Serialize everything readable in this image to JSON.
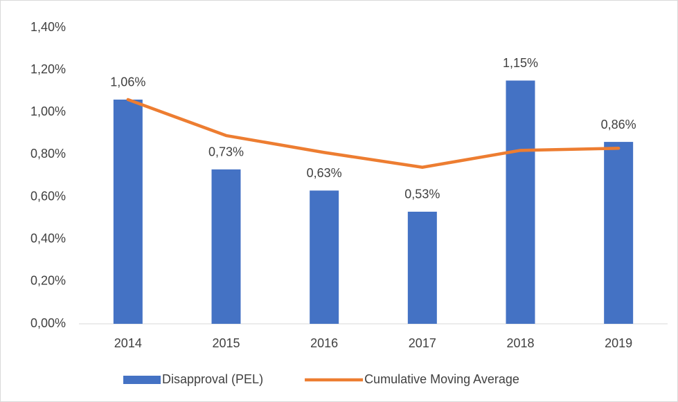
{
  "chart_data": {
    "type": "bar_line",
    "categories": [
      "2014",
      "2015",
      "2016",
      "2017",
      "2018",
      "2019"
    ],
    "series": [
      {
        "name": "Disapproval (PEL)",
        "type": "bar",
        "color": "#4472c4",
        "values": [
          1.06,
          0.73,
          0.63,
          0.53,
          1.15,
          0.86
        ],
        "value_labels": [
          "1,06%",
          "0,73%",
          "0,63%",
          "0,53%",
          "1,15%",
          "0,86%"
        ]
      },
      {
        "name": "Cumulative Moving Average",
        "type": "line",
        "color": "#ed7d31",
        "values": [
          1.06,
          0.89,
          0.81,
          0.74,
          0.82,
          0.83
        ]
      }
    ],
    "ylim": [
      0,
      1.4
    ],
    "yticks": [
      {
        "value": 0,
        "label": "0,00%"
      },
      {
        "value": 0.2,
        "label": "0,20%"
      },
      {
        "value": 0.4,
        "label": "0,40%"
      },
      {
        "value": 0.6,
        "label": "0,60%"
      },
      {
        "value": 0.8,
        "label": "0,80%"
      },
      {
        "value": 1.0,
        "label": "1,00%"
      },
      {
        "value": 1.2,
        "label": "1,20%"
      },
      {
        "value": 1.4,
        "label": "1,40%"
      }
    ],
    "grid": false,
    "legend": "bottom"
  }
}
